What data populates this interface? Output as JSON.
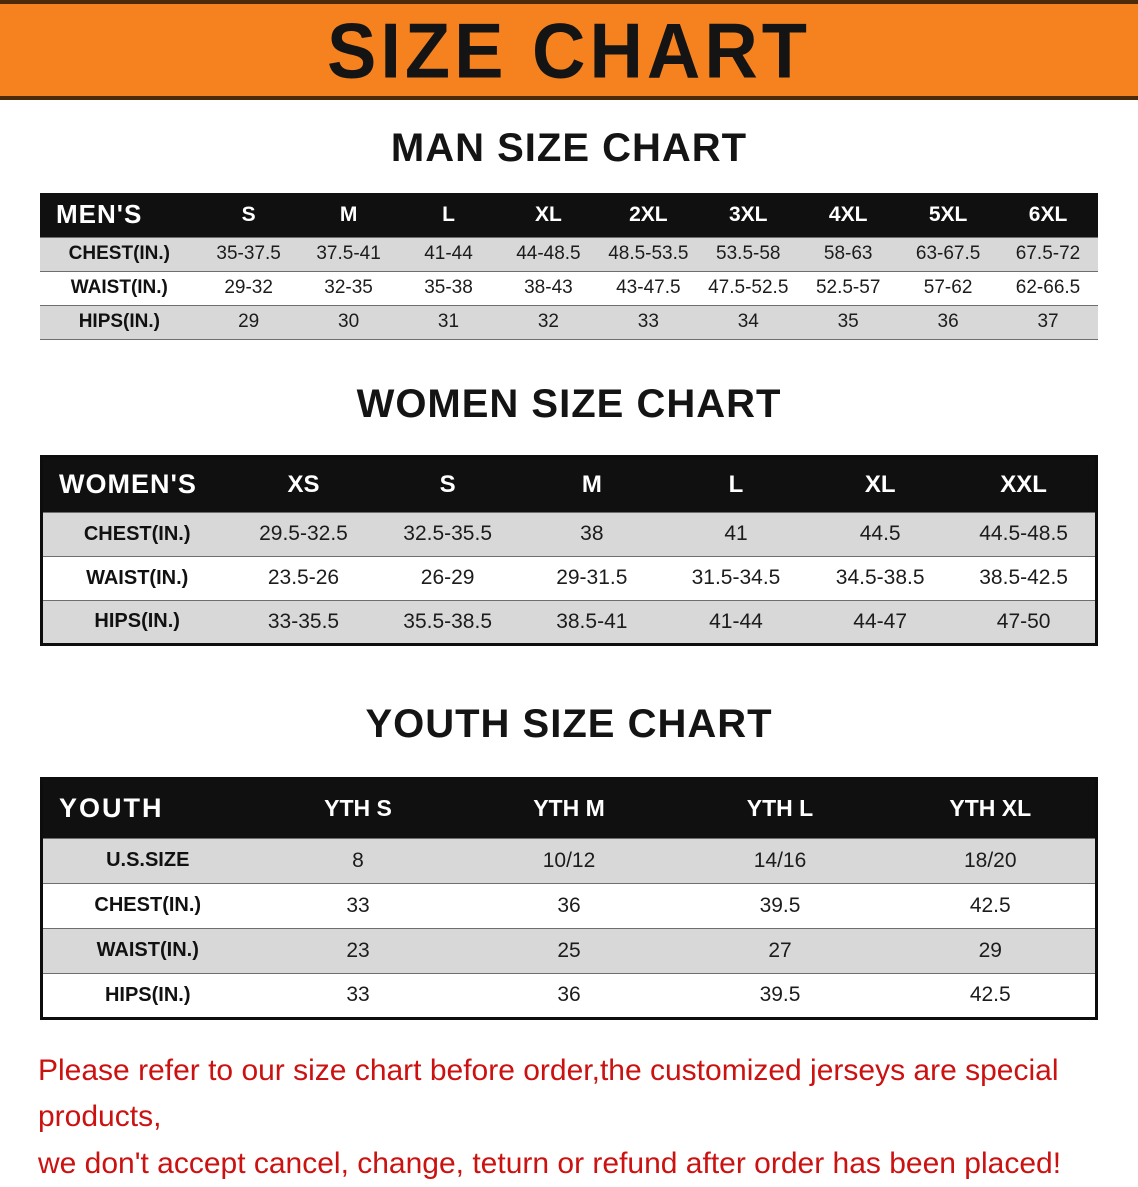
{
  "banner": {
    "title": "SIZE CHART"
  },
  "sections": [
    {
      "id": "men",
      "heading": "MAN SIZE CHART",
      "table": {
        "header": [
          "MEN'S",
          "S",
          "M",
          "L",
          "XL",
          "2XL",
          "3XL",
          "4XL",
          "5XL",
          "6XL"
        ],
        "rows": [
          {
            "label": "CHEST(IN.)",
            "values": [
              "35-37.5",
              "37.5-41",
              "41-44",
              "44-48.5",
              "48.5-53.5",
              "53.5-58",
              "58-63",
              "63-67.5",
              "67.5-72"
            ]
          },
          {
            "label": "WAIST(IN.)",
            "values": [
              "29-32",
              "32-35",
              "35-38",
              "38-43",
              "43-47.5",
              "47.5-52.5",
              "52.5-57",
              "57-62",
              "62-66.5"
            ]
          },
          {
            "label": "HIPS(IN.)",
            "values": [
              "29",
              "30",
              "31",
              "32",
              "33",
              "34",
              "35",
              "36",
              "37"
            ]
          }
        ]
      }
    },
    {
      "id": "women",
      "heading": "WOMEN SIZE CHART",
      "table": {
        "header": [
          "WOMEN'S",
          "XS",
          "S",
          "M",
          "L",
          "XL",
          "XXL"
        ],
        "rows": [
          {
            "label": "CHEST(IN.)",
            "values": [
              "29.5-32.5",
              "32.5-35.5",
              "38",
              "41",
              "44.5",
              "44.5-48.5"
            ]
          },
          {
            "label": "WAIST(IN.)",
            "values": [
              "23.5-26",
              "26-29",
              "29-31.5",
              "31.5-34.5",
              "34.5-38.5",
              "38.5-42.5"
            ]
          },
          {
            "label": "HIPS(IN.)",
            "values": [
              "33-35.5",
              "35.5-38.5",
              "38.5-41",
              "41-44",
              "44-47",
              "47-50"
            ]
          }
        ]
      }
    },
    {
      "id": "youth",
      "heading": "YOUTH SIZE CHART",
      "table": {
        "header": [
          "YOUTH",
          "YTH S",
          "YTH M",
          "YTH L",
          "YTH XL"
        ],
        "rows": [
          {
            "label": "U.S.SIZE",
            "values": [
              "8",
              "10/12",
              "14/16",
              "18/20"
            ]
          },
          {
            "label": "CHEST(IN.)",
            "values": [
              "33",
              "36",
              "39.5",
              "42.5"
            ]
          },
          {
            "label": "WAIST(IN.)",
            "values": [
              "23",
              "25",
              "27",
              "29"
            ]
          },
          {
            "label": "HIPS(IN.)",
            "values": [
              "33",
              "36",
              "39.5",
              "42.5"
            ]
          }
        ]
      }
    }
  ],
  "footer": {
    "line1": "Please refer to our size chart before order,the customized jerseys are special products,",
    "line2": "we don't accept cancel, change, teturn or refund after order has been placed!"
  },
  "colors": {
    "banner_bg": "#f5821f",
    "header_bg": "#101010",
    "row_alt_bg": "#d8d8d8",
    "footer_text": "#cc1111"
  }
}
